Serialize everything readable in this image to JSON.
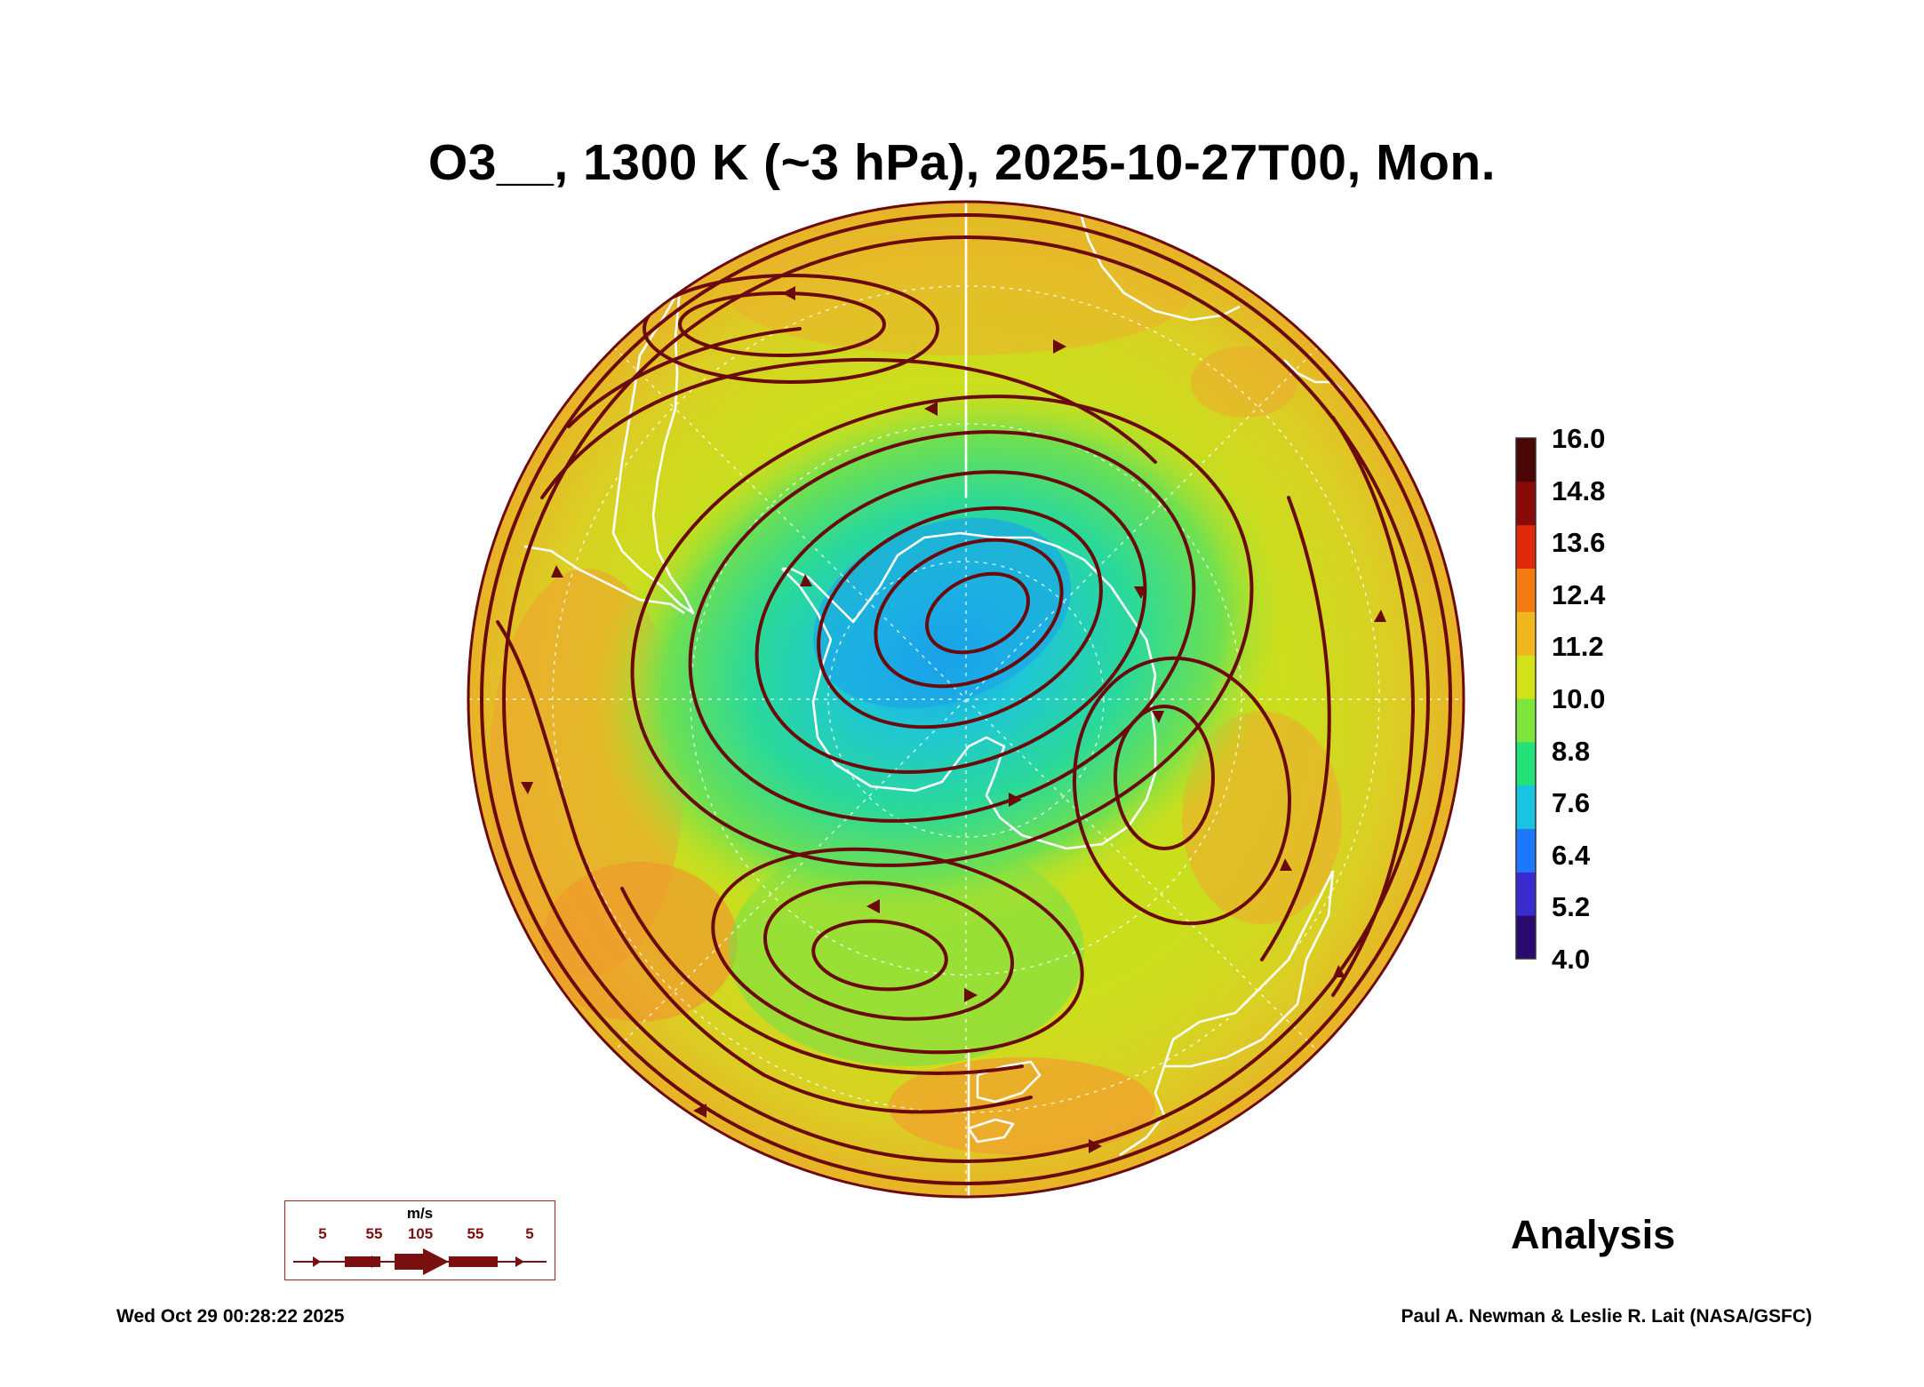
{
  "title": "O3__, 1300 K (~3 hPa), 2025-10-27T00, Mon.",
  "colorbar": {
    "labels": [
      "16.0",
      "14.8",
      "13.6",
      "12.4",
      "11.2",
      "10.0",
      "8.8",
      "7.6",
      "6.4",
      "5.2",
      "4.0"
    ],
    "min": 4.0,
    "max": 16.0,
    "colors": [
      "#2a0a6e",
      "#3a2bd0",
      "#1e78ff",
      "#19c4e0",
      "#23e27a",
      "#7ee63a",
      "#d4e21a",
      "#f0b81c",
      "#f57a12",
      "#e02a0a",
      "#8a0a0a",
      "#4a0505"
    ]
  },
  "wind_legend": {
    "unit": "m/s",
    "values": [
      "5",
      "55",
      "105",
      "55",
      "5"
    ],
    "color": "#7a1010"
  },
  "map": {
    "projection": "orthographic polar (south)",
    "streamline_color": "#6b0a0a",
    "coastline_color": "#ffffff",
    "field_summary": {
      "vortex_center_value": 6.4,
      "outer_ring_value": 12.0
    }
  },
  "label_analysis": "Analysis",
  "footer": {
    "timestamp": "Wed Oct 29 00:28:22 2025",
    "credit": "Paul A. Newman & Leslie R. Lait (NASA/GSFC)"
  }
}
